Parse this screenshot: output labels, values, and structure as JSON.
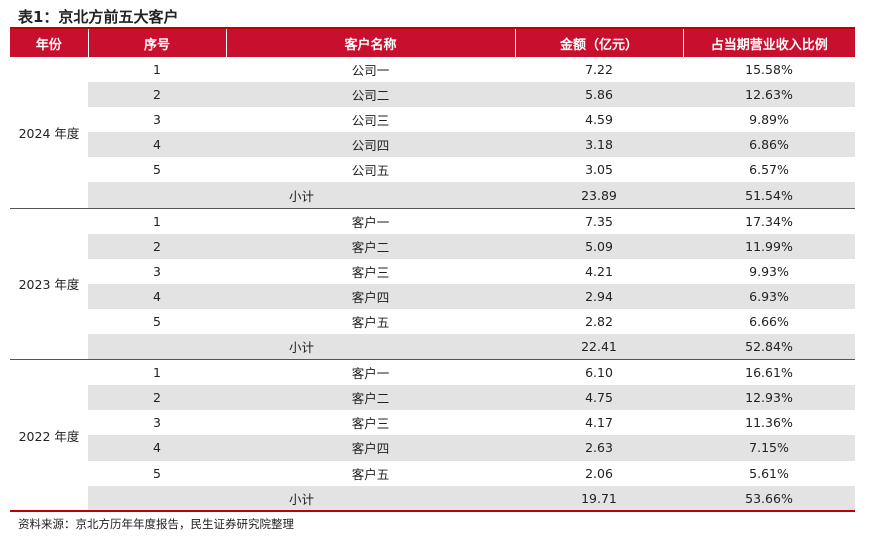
{
  "title": "表1：京北方前五大客户",
  "source": "资料来源：京北方历年年度报告，民生证券研究院整理",
  "headers": [
    "年份",
    "序号",
    "客户名称",
    "金额（亿元）",
    "占当期营业收入比例"
  ],
  "groups": [
    {
      "year": "2024 年度",
      "rows": [
        [
          "1",
          "公司一",
          "7.22",
          "15.58%"
        ],
        [
          "2",
          "公司二",
          "5.86",
          "12.63%"
        ],
        [
          "3",
          "公司三",
          "4.59",
          "9.89%"
        ],
        [
          "4",
          "公司四",
          "3.18",
          "6.86%"
        ],
        [
          "5",
          "公司五",
          "3.05",
          "6.57%"
        ]
      ],
      "subtotal": [
        "小计",
        "23.89",
        "51.54%"
      ]
    },
    {
      "year": "2023 年度",
      "rows": [
        [
          "1",
          "客户一",
          "7.35",
          "17.34%"
        ],
        [
          "2",
          "客户二",
          "5.09",
          "11.99%"
        ],
        [
          "3",
          "客户三",
          "4.21",
          "9.93%"
        ],
        [
          "4",
          "客户四",
          "2.94",
          "6.93%"
        ],
        [
          "5",
          "客户五",
          "2.82",
          "6.66%"
        ]
      ],
      "subtotal": [
        "小计",
        "22.41",
        "52.84%"
      ]
    },
    {
      "year": "2022 年度",
      "rows": [
        [
          "1",
          "客户一",
          "6.10",
          "16.61%"
        ],
        [
          "2",
          "客户二",
          "4.75",
          "12.93%"
        ],
        [
          "3",
          "客户三",
          "4.17",
          "11.36%"
        ],
        [
          "4",
          "客户四",
          "2.63",
          "7.15%"
        ],
        [
          "5",
          "客户五",
          "2.06",
          "5.61%"
        ]
      ],
      "subtotal": [
        "小计",
        "19.71",
        "53.66%"
      ]
    }
  ]
}
